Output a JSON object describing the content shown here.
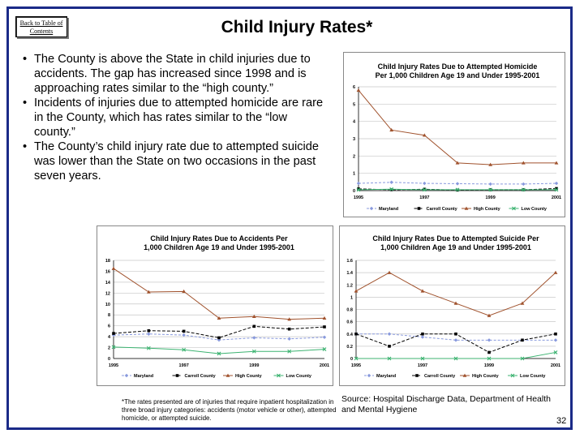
{
  "page": {
    "back_link": "Back to Table of Contents",
    "title": "Child Injury Rates*",
    "page_number": "32"
  },
  "bullets": [
    "The County is above the State in child injuries due to accidents. The gap has increased since 1998 and is approaching rates similar to the “high county.”",
    "Incidents of injuries due to attempted homicide are rare in the County, which has rates similar to the “low county.”",
    "The County’s child injury rate due to attempted suicide was lower than the State on two occasions in the past seven years."
  ],
  "footnote": "*The rates presented are of injuries that require inpatient hospitalization in three broad injury categories: accidents (motor vehicle or other), attempted homicide, or attempted suicide.",
  "source": "Source: Hospital Discharge Data, Department of Health and Mental Hygiene",
  "colors": {
    "frame": "#1a2a88",
    "maryland": "#8899dd",
    "carroll": "#000000",
    "high": "#a0522d",
    "low": "#3cb371"
  },
  "chart_data": [
    {
      "id": "homicide",
      "type": "line",
      "title": [
        "Child Injury Rates Due to Attempted Homicide",
        "Per 1,000 Children Age 19 and Under 1995-2001"
      ],
      "x": [
        1995,
        1996,
        1997,
        1998,
        1999,
        2000,
        2001
      ],
      "xticks": [
        "1995",
        "1997",
        "1999",
        "2001"
      ],
      "ylim": [
        0,
        6
      ],
      "yticks": [
        "0",
        "1",
        "2",
        "3",
        "4",
        "5",
        "6"
      ],
      "legend": [
        "Maryland",
        "Carroll County",
        "High County",
        "Low County"
      ],
      "series": [
        {
          "name": "Maryland",
          "values": [
            0.42,
            0.48,
            0.42,
            0.4,
            0.38,
            0.38,
            0.42
          ]
        },
        {
          "name": "Carroll County",
          "values": [
            0.1,
            0.05,
            0.08,
            0.03,
            0.05,
            0.05,
            0.12
          ]
        },
        {
          "name": "High County",
          "values": [
            5.8,
            3.5,
            3.2,
            1.6,
            1.5,
            1.6,
            1.6
          ]
        },
        {
          "name": "Low County",
          "values": [
            0.05,
            0.08,
            0.05,
            0.05,
            0.05,
            0.05,
            0.05
          ]
        }
      ]
    },
    {
      "id": "accidents",
      "type": "line",
      "title": [
        "Child Injury Rates Due to Accidents Per",
        "1,000 Children Age 19 and Under 1995-2001"
      ],
      "x": [
        1995,
        1996,
        1997,
        1998,
        1999,
        2000,
        2001
      ],
      "xticks": [
        "1995",
        "1997",
        "1999",
        "2001"
      ],
      "ylim": [
        0,
        18
      ],
      "yticks": [
        "0",
        "2",
        "4",
        "6",
        "8",
        "10",
        "12",
        "14",
        "16",
        "18"
      ],
      "legend": [
        "Maryland",
        "Carroll County",
        "High County",
        "Low County"
      ],
      "series": [
        {
          "name": "Maryland",
          "values": [
            4.3,
            4.5,
            4.3,
            3.4,
            3.8,
            3.6,
            3.9
          ]
        },
        {
          "name": "Carroll County",
          "values": [
            4.6,
            5.1,
            5.0,
            3.8,
            5.9,
            5.4,
            5.8
          ]
        },
        {
          "name": "High County",
          "values": [
            16.5,
            12.2,
            12.3,
            7.4,
            7.7,
            7.2,
            7.4
          ]
        },
        {
          "name": "Low County",
          "values": [
            2.1,
            1.9,
            1.6,
            0.9,
            1.3,
            1.3,
            1.7
          ]
        }
      ]
    },
    {
      "id": "suicide",
      "type": "line",
      "title": [
        "Child Injury Rates Due to Attempted Suicide Per",
        "1,000 Children Age 19 and Under 1995-2001"
      ],
      "x": [
        1995,
        1996,
        1997,
        1998,
        1999,
        2000,
        2001
      ],
      "xticks": [
        "1995",
        "1997",
        "1999",
        "2001"
      ],
      "ylim": [
        0,
        1.6
      ],
      "yticks": [
        "0",
        "0.2",
        "0.4",
        "0.6",
        "0.8",
        "1",
        "1.2",
        "1.4",
        "1.6"
      ],
      "legend": [
        "Maryland",
        "Carroll County",
        "High County",
        "Low County"
      ],
      "series": [
        {
          "name": "Maryland",
          "values": [
            0.4,
            0.4,
            0.35,
            0.3,
            0.3,
            0.3,
            0.3
          ]
        },
        {
          "name": "Carroll County",
          "values": [
            0.4,
            0.2,
            0.4,
            0.4,
            0.1,
            0.3,
            0.4
          ]
        },
        {
          "name": "High County",
          "values": [
            1.1,
            1.4,
            1.1,
            0.9,
            0.7,
            0.9,
            1.4
          ]
        },
        {
          "name": "Low County",
          "values": [
            0.0,
            0.0,
            0.0,
            0.0,
            0.0,
            0.0,
            0.1
          ]
        }
      ]
    }
  ]
}
